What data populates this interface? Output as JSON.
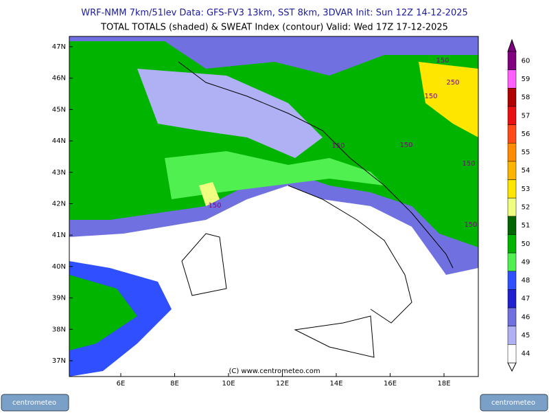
{
  "header": {
    "line1": "WRF-NMM 7km/51lev  Data: GFS-FV3 13km, SST 8km, 3DVAR  Init: Sun 12Z 14-12-2025",
    "line2": "TOTAL TOTALS (shaded) & SWEAT Index (contour)  Valid: Wed 17Z 17-12-2025"
  },
  "map": {
    "lat_labels": [
      "47N",
      "46N",
      "45N",
      "44N",
      "43N",
      "42N",
      "41N",
      "40N",
      "39N",
      "38N",
      "37N"
    ],
    "lon_labels": [
      "6E",
      "8E",
      "10E",
      "12E",
      "14E",
      "16E",
      "18E"
    ],
    "contour_labels": [
      "150",
      "250",
      "150",
      "150",
      "150",
      "150",
      "150",
      "150"
    ],
    "watermark": "(C) www.centrometeo.com"
  },
  "legend": {
    "levels": [
      {
        "value": 60,
        "color": "#800080"
      },
      {
        "value": 59,
        "color": "#ff60ff"
      },
      {
        "value": 58,
        "color": "#b00000"
      },
      {
        "value": 57,
        "color": "#e81010"
      },
      {
        "value": 56,
        "color": "#ff4a1a"
      },
      {
        "value": 55,
        "color": "#ff8c00"
      },
      {
        "value": 54,
        "color": "#ffb400"
      },
      {
        "value": 53,
        "color": "#ffe600"
      },
      {
        "value": 52,
        "color": "#f0ff80"
      },
      {
        "value": 51,
        "color": "#006400"
      },
      {
        "value": 50,
        "color": "#00b400"
      },
      {
        "value": 49,
        "color": "#50f050"
      },
      {
        "value": 48,
        "color": "#3050ff"
      },
      {
        "value": 47,
        "color": "#2020d0"
      },
      {
        "value": 46,
        "color": "#7070e0"
      },
      {
        "value": 45,
        "color": "#b0b0f4"
      },
      {
        "value": 44,
        "color": "#ffffff"
      }
    ]
  },
  "logos": [
    "centrometeo",
    "centrometeo"
  ]
}
